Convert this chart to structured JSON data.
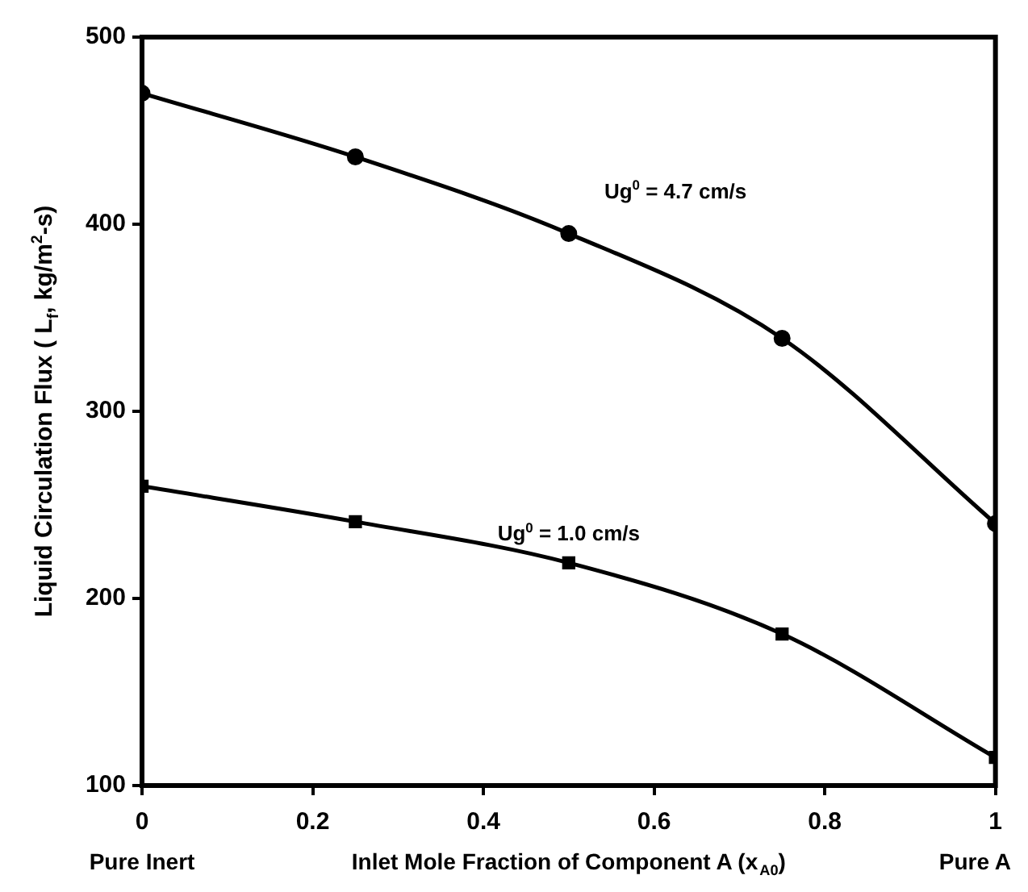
{
  "chart_data": {
    "type": "line",
    "xlabel": "Inlet Mole Fraction of Component A (x$_{A0}$)",
    "ylabel": "Liquid Circulation Flux ( L$_{f}$, kg/m$^{2}$-s)",
    "x": [
      0,
      0.25,
      0.5,
      0.75,
      1
    ],
    "series": [
      {
        "name": "Ug$^{0}$ = 4.7 cm/s",
        "color": "#000000",
        "marker": "circle",
        "values": [
          470,
          436,
          395,
          339,
          240
        ]
      },
      {
        "name": "Ug$^{0}$ = 1.0 cm/s",
        "color": "#000000",
        "marker": "square",
        "values": [
          260,
          241,
          219,
          181,
          115
        ]
      }
    ],
    "xlim": [
      0,
      1
    ],
    "xticks": [
      0,
      0.2,
      0.4,
      0.6,
      0.8,
      1
    ],
    "ylim": [
      100,
      500
    ],
    "yticks": [
      100,
      200,
      300,
      400,
      500
    ],
    "grid": false,
    "legend": false,
    "line_style": "solid",
    "annotations": [
      "Pure Inert",
      "Pure A"
    ]
  }
}
